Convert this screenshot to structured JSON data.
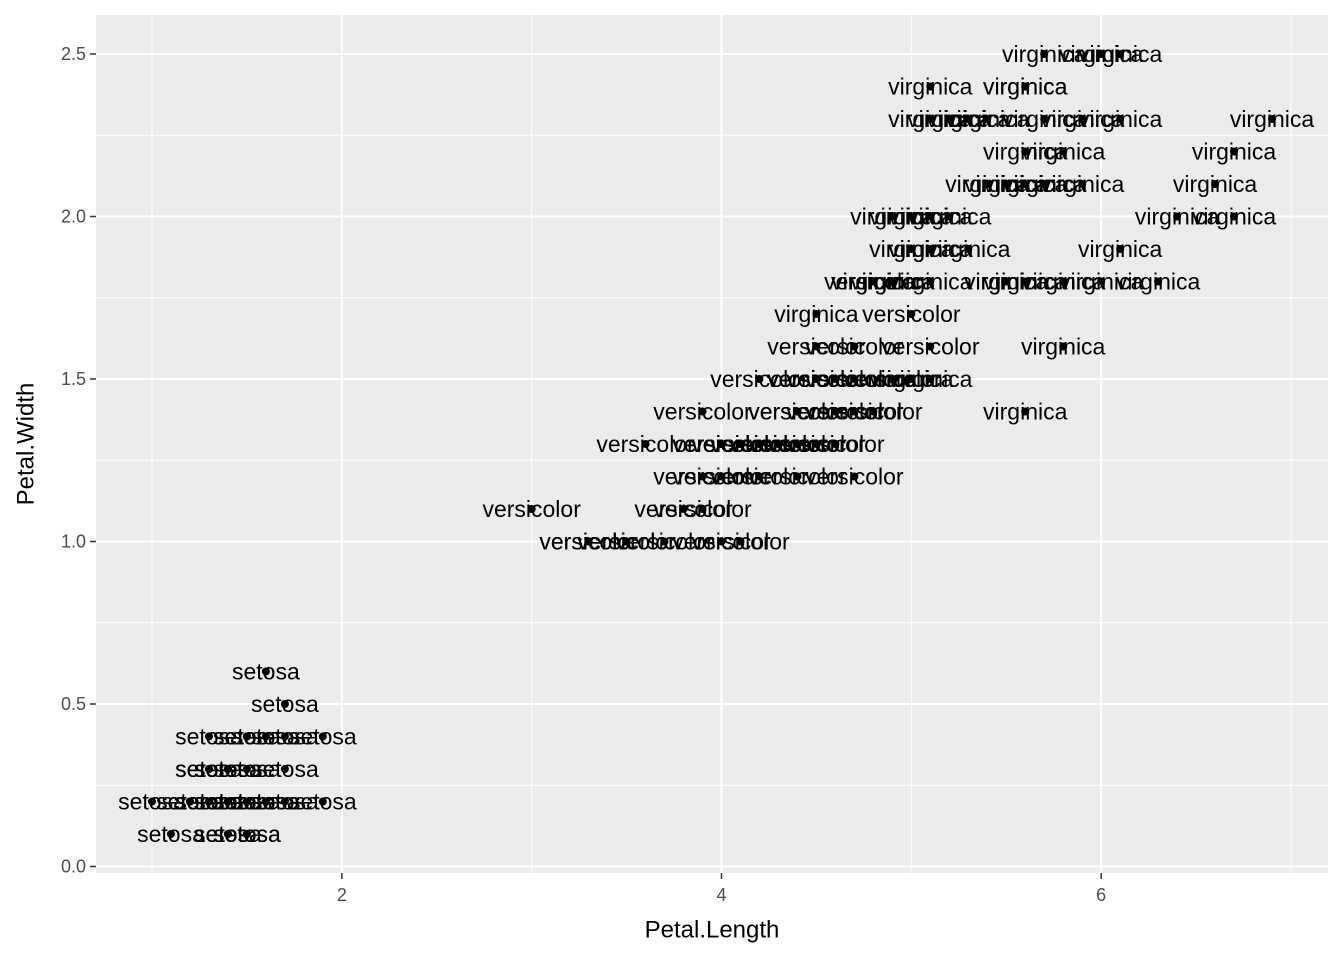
{
  "chart_data": {
    "type": "scatter",
    "x_label": "Petal.Length",
    "y_label": "Petal.Width",
    "xlim": [
      0.705,
      7.195
    ],
    "ylim": [
      -0.02,
      2.62
    ],
    "xticks": [
      2,
      4,
      6
    ],
    "yticks": [
      {
        "value": 0,
        "label": "0.0"
      },
      0.5,
      {
        "value": 1,
        "label": "1.0"
      },
      1.5,
      {
        "value": 2,
        "label": "2.0"
      },
      2.5
    ],
    "xminor": [
      1,
      3,
      5,
      7
    ],
    "yminor": [
      0.25,
      0.75,
      1.25,
      1.75,
      2.25
    ],
    "grid": true,
    "color": "#000000",
    "x": [
      1.4,
      1.4,
      1.3,
      1.5,
      1.4,
      1.7,
      1.4,
      1.5,
      1.4,
      1.5,
      1.5,
      1.6,
      1.4,
      1.1,
      1.2,
      1.5,
      1.3,
      1.4,
      1.7,
      1.5,
      1.7,
      1.5,
      1.0,
      1.7,
      1.9,
      1.6,
      1.6,
      1.5,
      1.4,
      1.6,
      1.6,
      1.5,
      1.5,
      1.4,
      1.5,
      1.2,
      1.3,
      1.4,
      1.3,
      1.5,
      1.3,
      1.3,
      1.3,
      1.6,
      1.9,
      1.4,
      1.6,
      1.4,
      1.5,
      1.4,
      4.7,
      4.5,
      4.9,
      4.0,
      4.6,
      4.5,
      4.7,
      3.3,
      4.6,
      3.9,
      3.5,
      4.2,
      4.0,
      4.7,
      3.6,
      4.4,
      4.5,
      4.1,
      4.5,
      3.9,
      4.8,
      4.0,
      4.9,
      4.7,
      4.3,
      4.4,
      4.8,
      5.0,
      4.5,
      3.5,
      3.8,
      3.7,
      3.9,
      5.1,
      4.5,
      4.5,
      4.7,
      4.4,
      4.1,
      4.0,
      4.4,
      4.6,
      4.0,
      3.3,
      4.2,
      4.2,
      4.2,
      4.3,
      3.0,
      4.1,
      6.0,
      5.1,
      5.9,
      5.6,
      5.8,
      6.6,
      4.5,
      6.3,
      5.8,
      6.1,
      5.1,
      5.3,
      5.5,
      5.0,
      5.1,
      5.3,
      5.5,
      6.7,
      6.9,
      5.0,
      5.7,
      4.9,
      6.7,
      4.9,
      5.7,
      6.0,
      4.8,
      4.9,
      5.6,
      5.8,
      6.1,
      6.4,
      5.6,
      5.1,
      5.6,
      6.1,
      5.6,
      5.5,
      4.8,
      5.4,
      5.6,
      5.1,
      5.1,
      5.9,
      5.7,
      5.2,
      5.0,
      5.2,
      5.4,
      5.1
    ],
    "values": [
      0.2,
      0.2,
      0.2,
      0.2,
      0.2,
      0.4,
      0.3,
      0.2,
      0.2,
      0.1,
      0.2,
      0.2,
      0.1,
      0.1,
      0.2,
      0.4,
      0.4,
      0.3,
      0.3,
      0.3,
      0.2,
      0.4,
      0.2,
      0.5,
      0.2,
      0.2,
      0.4,
      0.2,
      0.2,
      0.2,
      0.2,
      0.4,
      0.1,
      0.2,
      0.2,
      0.2,
      0.2,
      0.1,
      0.2,
      0.2,
      0.3,
      0.3,
      0.2,
      0.6,
      0.4,
      0.3,
      0.2,
      0.2,
      0.2,
      0.2,
      1.4,
      1.5,
      1.5,
      1.3,
      1.5,
      1.3,
      1.6,
      1.0,
      1.3,
      1.4,
      1.0,
      1.5,
      1.0,
      1.4,
      1.3,
      1.4,
      1.5,
      1.0,
      1.5,
      1.1,
      1.8,
      1.3,
      1.5,
      1.2,
      1.3,
      1.4,
      1.4,
      1.7,
      1.5,
      1.0,
      1.1,
      1.0,
      1.2,
      1.6,
      1.5,
      1.6,
      1.5,
      1.3,
      1.3,
      1.3,
      1.2,
      1.4,
      1.2,
      1.0,
      1.3,
      1.2,
      1.3,
      1.3,
      1.1,
      1.3,
      2.5,
      1.9,
      2.1,
      1.8,
      2.2,
      2.1,
      1.7,
      1.8,
      1.8,
      2.5,
      2.0,
      1.9,
      2.1,
      2.0,
      2.4,
      2.3,
      1.8,
      2.2,
      2.3,
      1.5,
      2.3,
      2.0,
      2.0,
      1.8,
      2.1,
      1.8,
      1.8,
      1.8,
      2.1,
      1.6,
      1.9,
      2.0,
      2.2,
      1.5,
      1.4,
      2.3,
      2.4,
      1.8,
      1.8,
      2.1,
      2.4,
      2.3,
      1.9,
      2.3,
      2.5,
      2.3,
      1.9,
      2.0,
      2.3,
      1.8
    ],
    "labels": [
      "setosa",
      "setosa",
      "setosa",
      "setosa",
      "setosa",
      "setosa",
      "setosa",
      "setosa",
      "setosa",
      "setosa",
      "setosa",
      "setosa",
      "setosa",
      "setosa",
      "setosa",
      "setosa",
      "setosa",
      "setosa",
      "setosa",
      "setosa",
      "setosa",
      "setosa",
      "setosa",
      "setosa",
      "setosa",
      "setosa",
      "setosa",
      "setosa",
      "setosa",
      "setosa",
      "setosa",
      "setosa",
      "setosa",
      "setosa",
      "setosa",
      "setosa",
      "setosa",
      "setosa",
      "setosa",
      "setosa",
      "setosa",
      "setosa",
      "setosa",
      "setosa",
      "setosa",
      "setosa",
      "setosa",
      "setosa",
      "setosa",
      "setosa",
      "versicolor",
      "versicolor",
      "versicolor",
      "versicolor",
      "versicolor",
      "versicolor",
      "versicolor",
      "versicolor",
      "versicolor",
      "versicolor",
      "versicolor",
      "versicolor",
      "versicolor",
      "versicolor",
      "versicolor",
      "versicolor",
      "versicolor",
      "versicolor",
      "versicolor",
      "versicolor",
      "versicolor",
      "versicolor",
      "versicolor",
      "versicolor",
      "versicolor",
      "versicolor",
      "versicolor",
      "versicolor",
      "versicolor",
      "versicolor",
      "versicolor",
      "versicolor",
      "versicolor",
      "versicolor",
      "versicolor",
      "versicolor",
      "versicolor",
      "versicolor",
      "versicolor",
      "versicolor",
      "versicolor",
      "versicolor",
      "versicolor",
      "versicolor",
      "versicolor",
      "versicolor",
      "versicolor",
      "versicolor",
      "versicolor",
      "versicolor",
      "virginica",
      "virginica",
      "virginica",
      "virginica",
      "virginica",
      "virginica",
      "virginica",
      "virginica",
      "virginica",
      "virginica",
      "virginica",
      "virginica",
      "virginica",
      "virginica",
      "virginica",
      "virginica",
      "virginica",
      "virginica",
      "virginica",
      "virginica",
      "virginica",
      "virginica",
      "virginica",
      "virginica",
      "virginica",
      "virginica",
      "virginica",
      "virginica",
      "virginica",
      "virginica",
      "virginica",
      "virginica",
      "virginica",
      "virginica",
      "virginica",
      "virginica",
      "virginica",
      "virginica",
      "virginica",
      "virginica",
      "virginica",
      "virginica",
      "virginica",
      "virginica",
      "virginica",
      "virginica",
      "virginica",
      "virginica",
      "virginica",
      "virginica"
    ]
  }
}
